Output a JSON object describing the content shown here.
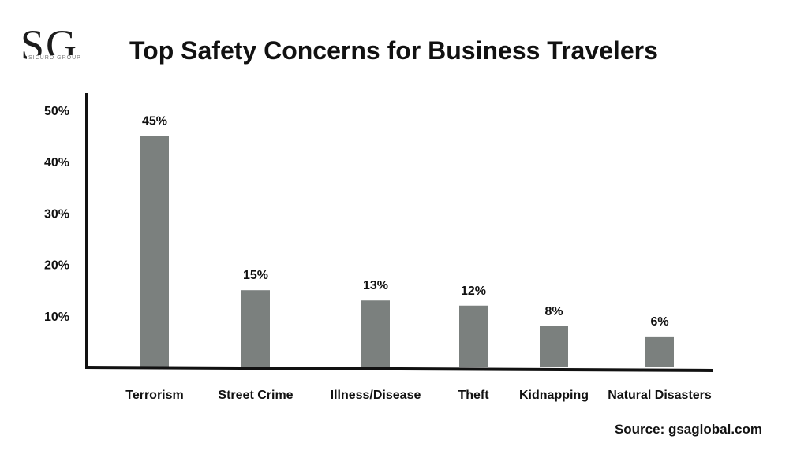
{
  "logo": {
    "letters": "SG",
    "subtitle": "SICURO GROUP"
  },
  "source": "Source: gsaglobal.com",
  "chart_data": {
    "type": "bar",
    "title": "Top Safety Concerns for Business Travelers",
    "xlabel": "",
    "ylabel": "",
    "categories": [
      "Terrorism",
      "Street Crime",
      "Illness/Disease",
      "Theft",
      "Kidnapping",
      "Natural Disasters"
    ],
    "values": [
      45,
      15,
      13,
      12,
      8,
      6
    ],
    "value_labels": [
      "45%",
      "15%",
      "13%",
      "12%",
      "8%",
      "6%"
    ],
    "yticks": [
      10,
      20,
      30,
      40,
      50
    ],
    "ytick_labels": [
      "10%",
      "20%",
      "30%",
      "40%",
      "50%"
    ],
    "ylim": [
      0,
      50
    ],
    "grid": false,
    "legend": "none",
    "bar_color": "#7b807e"
  }
}
